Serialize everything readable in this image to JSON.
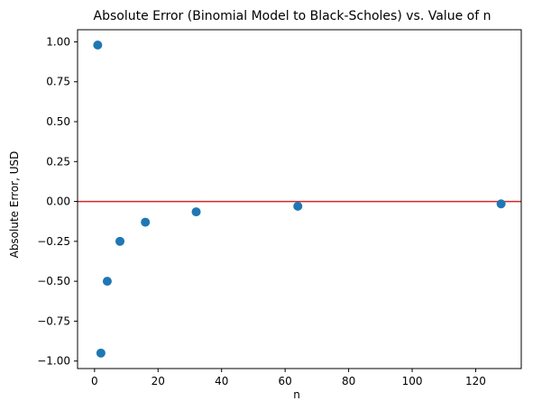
{
  "chart_data": {
    "type": "scatter",
    "title": "Absolute Error (Binomial Model to Black-Scholes) vs. Value of n",
    "xlabel": "n",
    "ylabel": "Absolute Error, USD",
    "xlim": [
      -5.35,
      134.35
    ],
    "ylim": [
      -1.047,
      1.076
    ],
    "xticks": [
      0,
      20,
      40,
      60,
      80,
      100,
      120
    ],
    "yticks": [
      -1.0,
      -0.75,
      -0.5,
      -0.25,
      0.0,
      0.25,
      0.5,
      0.75,
      1.0
    ],
    "xtick_labels": [
      "0",
      "20",
      "40",
      "60",
      "80",
      "100",
      "120"
    ],
    "ytick_labels": [
      "−1.00",
      "−0.75",
      "−0.50",
      "−0.25",
      "0.00",
      "0.25",
      "0.50",
      "0.75",
      "1.00"
    ],
    "grid": false,
    "series": [
      {
        "x": [
          1,
          2,
          4,
          8,
          16,
          32,
          64,
          128
        ],
        "y": [
          0.98,
          -0.95,
          -0.5,
          -0.25,
          -0.13,
          -0.065,
          -0.03,
          -0.015
        ],
        "color": "#1f77b4",
        "marker": "circle"
      }
    ],
    "reference_line": {
      "orientation": "horizontal",
      "y": 0.0,
      "color": "#d62728"
    }
  }
}
